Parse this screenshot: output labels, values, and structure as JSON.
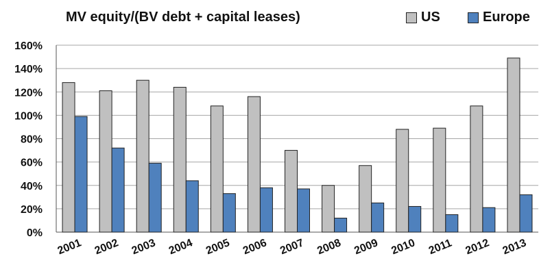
{
  "chart_data": {
    "type": "bar",
    "title": "MV equity/(BV debt + capital leases)",
    "categories": [
      "2001",
      "2002",
      "2003",
      "2004",
      "2005",
      "2006",
      "2007",
      "2008",
      "2009",
      "2010",
      "2011",
      "2012",
      "2013"
    ],
    "series": [
      {
        "name": "US",
        "color": "#c0c0c0",
        "values": [
          128,
          121,
          130,
          124,
          108,
          116,
          70,
          40,
          57,
          88,
          89,
          108,
          149
        ]
      },
      {
        "name": "Europe",
        "color": "#4f81bd",
        "values": [
          99,
          72,
          59,
          44,
          33,
          38,
          37,
          12,
          25,
          22,
          15,
          21,
          32
        ]
      }
    ],
    "y_unit": "%",
    "ylim": [
      0,
      160
    ],
    "yticks": [
      "0%",
      "20%",
      "40%",
      "60%",
      "80%",
      "100%",
      "120%",
      "140%",
      "160%"
    ],
    "grid": true,
    "legend_position": "top-right"
  }
}
